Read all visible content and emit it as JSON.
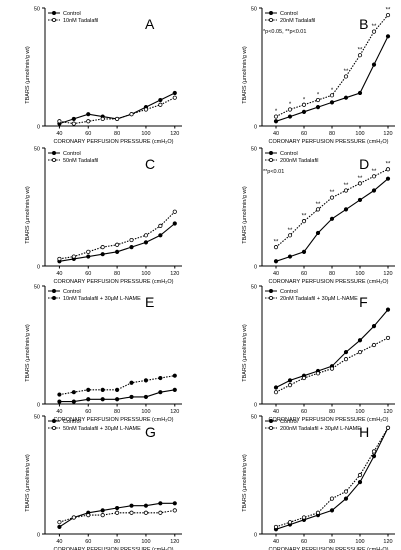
{
  "chart_data": [
    {
      "id": "A",
      "type": "line",
      "panel_label": "A",
      "ylabel": "TBARS (µmol/min/g wt)",
      "xlabel": "CORONARY PERFUSION PRESSURE (cmH₂O)",
      "x": [
        40,
        50,
        60,
        70,
        80,
        90,
        100,
        110,
        120
      ],
      "xticks": [
        40,
        60,
        80,
        100,
        120
      ],
      "ylim": [
        0,
        50
      ],
      "yticks": [
        0,
        50
      ],
      "series": [
        {
          "name": "Control",
          "style": "solid-filled",
          "values": [
            1,
            3,
            5,
            4,
            3,
            5,
            8,
            11,
            14
          ]
        },
        {
          "name": "10nM Tadalafil",
          "style": "dotted-open",
          "values": [
            2,
            1,
            2,
            3,
            3,
            5,
            7,
            9,
            12
          ]
        }
      ],
      "annotations": []
    },
    {
      "id": "B",
      "type": "line",
      "panel_label": "B",
      "ylabel": "TBARS (µmol/min/g wt)",
      "xlabel": "CORONARY PERFUSION PRESSURE (cmH₂O)",
      "x": [
        40,
        50,
        60,
        70,
        80,
        90,
        100,
        110,
        120
      ],
      "xticks": [
        40,
        60,
        80,
        100,
        120
      ],
      "ylim": [
        0,
        50
      ],
      "yticks": [
        0,
        50
      ],
      "series": [
        {
          "name": "Control",
          "style": "solid-filled",
          "values": [
            2,
            4,
            6,
            8,
            10,
            12,
            14,
            26,
            38
          ]
        },
        {
          "name": "20nM Tadalafil",
          "style": "dotted-open",
          "values": [
            4,
            7,
            9,
            11,
            13,
            21,
            30,
            40,
            47
          ]
        }
      ],
      "annotations": [
        {
          "text": "*p<0.05, **p<0.01",
          "kind": "note"
        },
        {
          "text": "*",
          "series": 1,
          "index": 0
        },
        {
          "text": "*",
          "series": 1,
          "index": 1
        },
        {
          "text": "*",
          "series": 1,
          "index": 2
        },
        {
          "text": "*",
          "series": 1,
          "index": 3
        },
        {
          "text": "*",
          "series": 1,
          "index": 4
        },
        {
          "text": "**",
          "series": 1,
          "index": 5
        },
        {
          "text": "**",
          "series": 1,
          "index": 6
        },
        {
          "text": "**",
          "series": 1,
          "index": 7
        },
        {
          "text": "**",
          "series": 1,
          "index": 8
        }
      ]
    },
    {
      "id": "C",
      "type": "line",
      "panel_label": "C",
      "ylabel": "TBARS (µmol/min/g wt)",
      "xlabel": "CORONARY PERFUSION PRESSURE (cmH₂O)",
      "x": [
        40,
        50,
        60,
        70,
        80,
        90,
        100,
        110,
        120
      ],
      "xticks": [
        40,
        60,
        80,
        100,
        120
      ],
      "ylim": [
        0,
        50
      ],
      "yticks": [
        0,
        50
      ],
      "series": [
        {
          "name": "Control",
          "style": "solid-filled",
          "values": [
            2,
            3,
            4,
            5,
            6,
            8,
            10,
            13,
            18
          ]
        },
        {
          "name": "50nM Tadalafil",
          "style": "dotted-open",
          "values": [
            3,
            4,
            6,
            8,
            9,
            11,
            13,
            17,
            23
          ]
        }
      ],
      "annotations": []
    },
    {
      "id": "D",
      "type": "line",
      "panel_label": "D",
      "ylabel": "TBARS (µmol/min/g wt)",
      "xlabel": "CORONARY PERFUSION PRESSURE (cmH₂O)",
      "x": [
        40,
        50,
        60,
        70,
        80,
        90,
        100,
        110,
        120
      ],
      "xticks": [
        40,
        60,
        80,
        100,
        120
      ],
      "ylim": [
        0,
        50
      ],
      "yticks": [
        0,
        50
      ],
      "series": [
        {
          "name": "Control",
          "style": "solid-filled",
          "values": [
            2,
            4,
            6,
            14,
            20,
            24,
            28,
            32,
            37
          ]
        },
        {
          "name": "200nM Tadalafil",
          "style": "dotted-open",
          "values": [
            8,
            13,
            19,
            24,
            29,
            32,
            35,
            38,
            41
          ]
        }
      ],
      "annotations": [
        {
          "text": "**p<0.01",
          "kind": "note"
        },
        {
          "text": "**",
          "series": 1,
          "index": 0
        },
        {
          "text": "**",
          "series": 1,
          "index": 1
        },
        {
          "text": "**",
          "series": 1,
          "index": 2
        },
        {
          "text": "**",
          "series": 1,
          "index": 3
        },
        {
          "text": "**",
          "series": 1,
          "index": 4
        },
        {
          "text": "**",
          "series": 1,
          "index": 5
        },
        {
          "text": "**",
          "series": 1,
          "index": 6
        },
        {
          "text": "**",
          "series": 1,
          "index": 7
        },
        {
          "text": "**",
          "series": 1,
          "index": 8
        }
      ]
    },
    {
      "id": "E",
      "type": "line",
      "panel_label": "E",
      "ylabel": "TBARS (µmol/min/g wt)",
      "xlabel": "CORONARY PERFUSION PRESSURE (cmH₂O)",
      "x": [
        40,
        50,
        60,
        70,
        80,
        90,
        100,
        110,
        120
      ],
      "xticks": [
        40,
        60,
        80,
        100,
        120
      ],
      "ylim": [
        0,
        50
      ],
      "yticks": [
        0,
        50
      ],
      "series": [
        {
          "name": "Control",
          "style": "solid-filled",
          "values": [
            1,
            1,
            2,
            2,
            2,
            3,
            3,
            5,
            6
          ]
        },
        {
          "name": "10nM Tadalafil + 30µM L-NAME",
          "style": "dotted-filled",
          "values": [
            4,
            5,
            6,
            6,
            6,
            9,
            10,
            11,
            12
          ]
        }
      ],
      "annotations": []
    },
    {
      "id": "F",
      "type": "line",
      "panel_label": "F",
      "ylabel": "TBARS (µmol/min/g wt)",
      "xlabel": "CORONARY PERFUSION PRESSURE (cmH₂O)",
      "x": [
        40,
        50,
        60,
        70,
        80,
        90,
        100,
        110,
        120
      ],
      "xticks": [
        40,
        60,
        80,
        100,
        120
      ],
      "ylim": [
        0,
        50
      ],
      "yticks": [
        0,
        50
      ],
      "series": [
        {
          "name": "Control",
          "style": "solid-filled",
          "values": [
            7,
            10,
            12,
            14,
            16,
            22,
            27,
            33,
            40
          ]
        },
        {
          "name": "20nM Tadalafil + 30µM L-NAME",
          "style": "dotted-open",
          "values": [
            5,
            8,
            11,
            13,
            15,
            19,
            22,
            25,
            28
          ]
        }
      ],
      "annotations": []
    },
    {
      "id": "G",
      "type": "line",
      "panel_label": "G",
      "ylabel": "TBARS (µmol/min/g wt)",
      "xlabel": "CORONARY PERFUSION PRESSURE (cmH₂O)",
      "x": [
        40,
        50,
        60,
        70,
        80,
        90,
        100,
        110,
        120
      ],
      "xticks": [
        40,
        60,
        80,
        100,
        120
      ],
      "ylim": [
        0,
        50
      ],
      "yticks": [
        0,
        50
      ],
      "series": [
        {
          "name": "Control",
          "style": "solid-filled",
          "values": [
            3,
            7,
            9,
            10,
            11,
            12,
            12,
            13,
            13
          ]
        },
        {
          "name": "50nM Tadalafil + 30µM L-NAME",
          "style": "dotted-open",
          "values": [
            5,
            7,
            8,
            8,
            9,
            9,
            9,
            9,
            10
          ]
        }
      ],
      "annotations": []
    },
    {
      "id": "H",
      "type": "line",
      "panel_label": "H",
      "ylabel": "TBARS (µmol/min/g wt)",
      "xlabel": "CORONARY PERFUSION PRESSURE (cmH₂O)",
      "x": [
        40,
        50,
        60,
        70,
        80,
        90,
        100,
        110,
        120
      ],
      "xticks": [
        40,
        60,
        80,
        100,
        120
      ],
      "ylim": [
        0,
        50
      ],
      "yticks": [
        0,
        50
      ],
      "series": [
        {
          "name": "Control",
          "style": "solid-filled",
          "values": [
            2,
            4,
            6,
            8,
            10,
            15,
            22,
            33,
            45
          ]
        },
        {
          "name": "200nM Tadalafil + 30µM L-NAME",
          "style": "dotted-open",
          "values": [
            3,
            5,
            7,
            9,
            15,
            18,
            25,
            35,
            45
          ]
        }
      ],
      "annotations": []
    }
  ]
}
